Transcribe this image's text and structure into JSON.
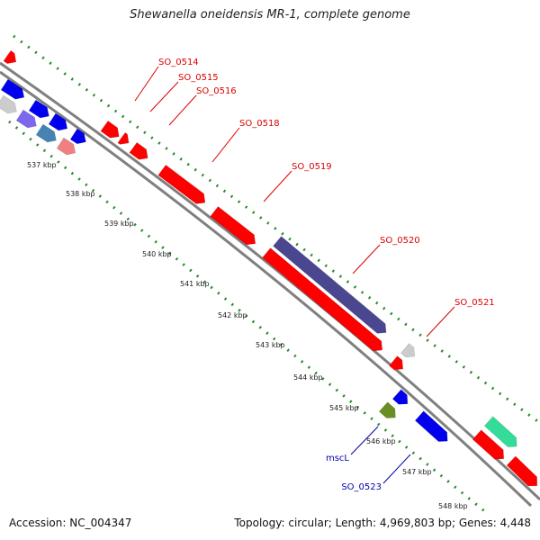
{
  "title": "Shewanella oneidensis MR-1, complete genome",
  "footer": {
    "accession": "Accession: NC_004347",
    "topology": "Topology: circular; Length: 4,969,803 bp; Genes: 4,448"
  },
  "colors": {
    "backbone": "#808080",
    "ticks": "#2a8a2a",
    "red": "#ff0000",
    "blue": "#0000ee",
    "navy": "#4b4690",
    "gray": "#cccccc",
    "pink": "#f08080",
    "steelblue": "#4682b4",
    "purple": "#7b68ee",
    "olive": "#6b8e23",
    "teal": "#33dd99",
    "label_red": "#dd0000",
    "label_blue": "#0000aa"
  },
  "kbp_ticks": [
    "537 kbp",
    "538 kbp",
    "539 kbp",
    "540 kbp",
    "541 kbp",
    "542 kbp",
    "543 kbp",
    "544 kbp",
    "545 kbp",
    "546 kbp",
    "547 kbp",
    "548 kbp"
  ],
  "genes": [
    {
      "name": "SO_0514",
      "color": "label_red"
    },
    {
      "name": "SO_0515",
      "color": "label_red"
    },
    {
      "name": "SO_0516",
      "color": "label_red"
    },
    {
      "name": "SO_0518",
      "color": "label_red"
    },
    {
      "name": "SO_0519",
      "color": "label_red"
    },
    {
      "name": "SO_0520",
      "color": "label_red"
    },
    {
      "name": "SO_0521",
      "color": "label_red"
    },
    {
      "name": "mscL",
      "color": "label_blue"
    },
    {
      "name": "SO_0523",
      "color": "label_blue"
    }
  ]
}
